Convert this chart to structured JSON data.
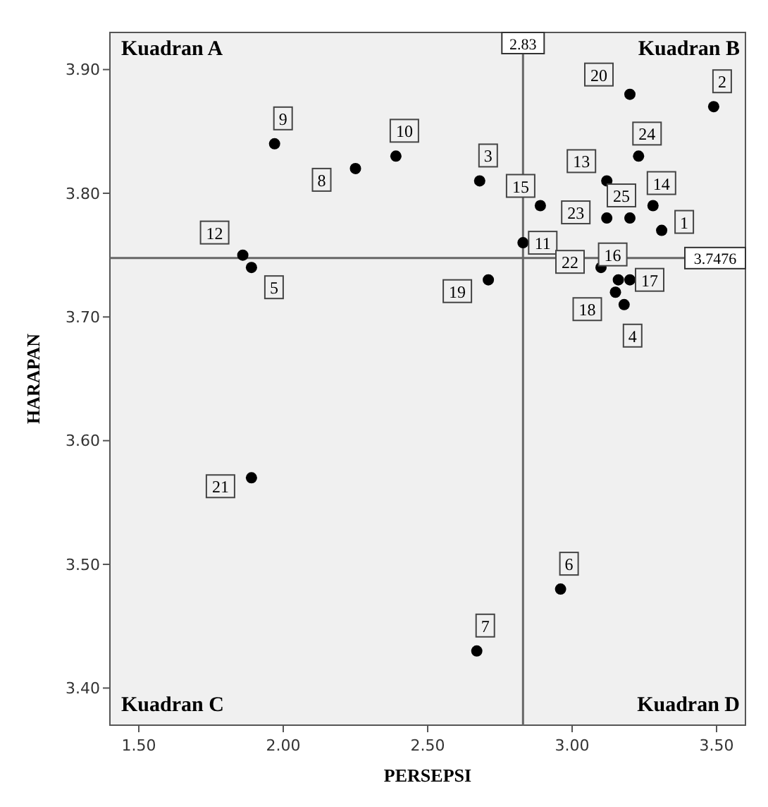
{
  "chart_data": {
    "type": "scatter",
    "xlabel": "PERSEPSI",
    "ylabel": "HARAPAN",
    "x": [
      3.31,
      3.49,
      2.68,
      3.18,
      1.89,
      2.96,
      2.67,
      2.25,
      1.97,
      2.39,
      2.83,
      1.86,
      3.12,
      3.28,
      2.89,
      3.16,
      3.2,
      3.15,
      2.71,
      3.2,
      1.89,
      3.1,
      3.12,
      3.23,
      3.2
    ],
    "series": [
      {
        "color": "#000000",
        "values": [
          3.77,
          3.87,
          3.81,
          3.71,
          3.74,
          3.48,
          3.43,
          3.82,
          3.84,
          3.83,
          3.76,
          3.75,
          3.81,
          3.79,
          3.79,
          3.73,
          3.73,
          3.72,
          3.73,
          3.88,
          3.57,
          3.74,
          3.78,
          3.83,
          3.78
        ]
      }
    ],
    "marker": "circle",
    "xlim": [
      1.4,
      3.6
    ],
    "ylim": [
      3.37,
      3.93
    ],
    "xticks": [
      {
        "value": 1.5,
        "label": "1.50"
      },
      {
        "value": 2,
        "label": "2.00"
      },
      {
        "value": 2.5,
        "label": "2.50"
      },
      {
        "value": 3,
        "label": "3.00"
      },
      {
        "value": 3.5,
        "label": "3.50"
      }
    ],
    "yticks": [
      {
        "value": 3.4,
        "label": "3.40"
      },
      {
        "value": 3.5,
        "label": "3.50"
      },
      {
        "value": 3.6,
        "label": "3.60"
      },
      {
        "value": 3.7,
        "label": "3.70"
      },
      {
        "value": 3.8,
        "label": "3.80"
      },
      {
        "value": 3.9,
        "label": "3.90"
      }
    ],
    "ref_lines": [
      {
        "axis": "x",
        "value": 2.83,
        "label": "2.83"
      },
      {
        "axis": "y",
        "value": 3.7476,
        "label": "3.7476"
      }
    ],
    "annotations": [
      "Kuadran A",
      "Kuadran B",
      "Kuadran C",
      "Kuadran D",
      {
        "text": "1",
        "x": 3.31,
        "y": 3.77
      },
      {
        "text": "2",
        "x": 3.49,
        "y": 3.87
      },
      {
        "text": "3",
        "x": 2.68,
        "y": 3.81
      },
      {
        "text": "4",
        "x": 3.18,
        "y": 3.71
      },
      {
        "text": "5",
        "x": 1.89,
        "y": 3.74
      },
      {
        "text": "6",
        "x": 2.96,
        "y": 3.48
      },
      {
        "text": "7",
        "x": 2.67,
        "y": 3.43
      },
      {
        "text": "8",
        "x": 2.25,
        "y": 3.82
      },
      {
        "text": "9",
        "x": 1.97,
        "y": 3.84
      },
      {
        "text": "10",
        "x": 2.39,
        "y": 3.83
      },
      {
        "text": "11",
        "x": 2.83,
        "y": 3.76
      },
      {
        "text": "12",
        "x": 1.86,
        "y": 3.75
      },
      {
        "text": "13",
        "x": 3.12,
        "y": 3.81
      },
      {
        "text": "14",
        "x": 3.28,
        "y": 3.79
      },
      {
        "text": "15",
        "x": 2.89,
        "y": 3.79
      },
      {
        "text": "16",
        "x": 3.16,
        "y": 3.73
      },
      {
        "text": "17",
        "x": 3.2,
        "y": 3.73
      },
      {
        "text": "18",
        "x": 3.15,
        "y": 3.72
      },
      {
        "text": "19",
        "x": 2.71,
        "y": 3.73
      },
      {
        "text": "20",
        "x": 3.2,
        "y": 3.88
      },
      {
        "text": "21",
        "x": 1.89,
        "y": 3.57
      },
      {
        "text": "22",
        "x": 3.1,
        "y": 3.74
      },
      {
        "text": "23",
        "x": 3.12,
        "y": 3.78
      },
      {
        "text": "24",
        "x": 3.23,
        "y": 3.83
      },
      {
        "text": "25",
        "x": 3.2,
        "y": 3.78
      }
    ]
  }
}
